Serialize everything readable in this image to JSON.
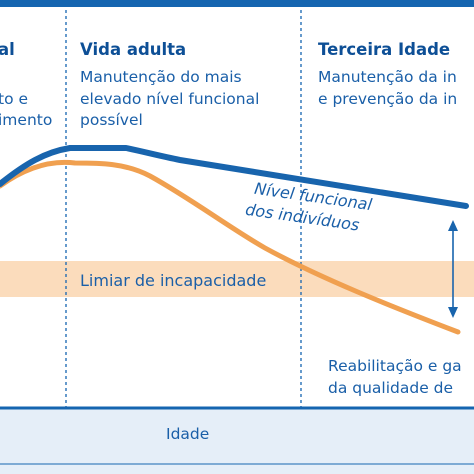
{
  "colors": {
    "frame": "#1565b0",
    "functional_curve": "#1864ad",
    "decline_curve": "#f0a050",
    "threshold_band": "#fbdcbc",
    "text": "#1a5fa8",
    "divider": "#1565b0",
    "footer_bg": "#e5eef8"
  },
  "phases": [
    {
      "title": "al",
      "lines": [
        "to e",
        "imento"
      ]
    },
    {
      "title": "Vida adulta",
      "lines": [
        "Manutenção do mais",
        "elevado nível funcional",
        "possível"
      ]
    },
    {
      "title": "Terceira Idade",
      "lines": [
        "Manutenção da in",
        "e prevenção da in"
      ]
    }
  ],
  "curve_label": {
    "line1": "Nível funcional",
    "line2": "dos indivíduos"
  },
  "threshold_label": "Limiar de incapacidade",
  "rehab_label": {
    "line1": "Reabilitação e ga",
    "line2": "da qualidade de"
  },
  "x_axis_label": "Idade"
}
